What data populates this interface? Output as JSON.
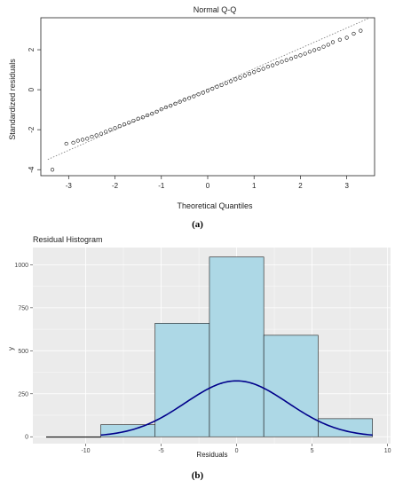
{
  "captions": {
    "a": "(a)",
    "b": "(b)"
  },
  "chart_data": [
    {
      "type": "scatter",
      "title": "Normal Q-Q",
      "xlabel": "Theoretical Quantiles",
      "ylabel": "Standardized residuals",
      "xlim": [
        -3.6,
        3.6
      ],
      "ylim": [
        -4.3,
        3.6
      ],
      "xticks": [
        -3,
        -2,
        -1,
        0,
        1,
        2,
        3
      ],
      "yticks": [
        -4,
        -2,
        0,
        2
      ],
      "xtick_labels": [
        "-3",
        "-2",
        "-1",
        "0",
        "1",
        "2",
        "3"
      ],
      "ytick_labels": [
        "-4",
        "-2",
        "0",
        "2"
      ],
      "reference_line": {
        "slope": 1.02,
        "intercept": 0.03,
        "style": "dotted"
      },
      "points": {
        "x": [
          -3.35,
          -3.05,
          -2.9,
          -2.8,
          -2.7,
          -2.6,
          -2.5,
          -2.4,
          -2.3,
          -2.2,
          -2.1,
          -2.0,
          -1.9,
          -1.8,
          -1.7,
          -1.6,
          -1.5,
          -1.4,
          -1.3,
          -1.2,
          -1.1,
          -1.0,
          -0.9,
          -0.8,
          -0.7,
          -0.6,
          -0.5,
          -0.4,
          -0.3,
          -0.2,
          -0.1,
          0.0,
          0.1,
          0.2,
          0.3,
          0.4,
          0.5,
          0.6,
          0.7,
          0.8,
          0.9,
          1.0,
          1.1,
          1.2,
          1.3,
          1.4,
          1.5,
          1.6,
          1.7,
          1.8,
          1.9,
          2.0,
          2.1,
          2.2,
          2.3,
          2.4,
          2.5,
          2.6,
          2.7,
          2.85,
          3.0,
          3.15,
          3.3
        ],
        "y": [
          -4.0,
          -2.7,
          -2.65,
          -2.55,
          -2.5,
          -2.45,
          -2.35,
          -2.28,
          -2.2,
          -2.1,
          -2.0,
          -1.92,
          -1.82,
          -1.73,
          -1.65,
          -1.55,
          -1.45,
          -1.38,
          -1.28,
          -1.2,
          -1.1,
          -0.98,
          -0.88,
          -0.8,
          -0.7,
          -0.6,
          -0.5,
          -0.42,
          -0.33,
          -0.23,
          -0.15,
          -0.05,
          0.05,
          0.15,
          0.23,
          0.33,
          0.42,
          0.52,
          0.6,
          0.7,
          0.8,
          0.88,
          0.98,
          1.05,
          1.15,
          1.22,
          1.32,
          1.4,
          1.48,
          1.55,
          1.65,
          1.72,
          1.8,
          1.9,
          1.98,
          2.05,
          2.15,
          2.25,
          2.38,
          2.5,
          2.6,
          2.8,
          2.95
        ]
      }
    },
    {
      "type": "bar",
      "title": "Residual Histogram",
      "xlabel": "Residuals",
      "ylabel": "y",
      "xlim": [
        -13.5,
        10.2
      ],
      "ylim": [
        -40,
        1100
      ],
      "xticks": [
        -10,
        -5,
        0,
        5,
        10
      ],
      "yticks": [
        0,
        250,
        500,
        750,
        1000
      ],
      "xtick_labels": [
        "-10",
        "-5",
        "0",
        "5",
        "10"
      ],
      "ytick_labels": [
        "0",
        "250",
        "500",
        "750",
        "1000"
      ],
      "bins": [
        {
          "x0": -12.6,
          "x1": -9.0,
          "count": 0
        },
        {
          "x0": -9.0,
          "x1": -5.4,
          "count": 70
        },
        {
          "x0": -5.4,
          "x1": -1.8,
          "count": 660
        },
        {
          "x0": -1.8,
          "x1": 1.8,
          "count": 1045
        },
        {
          "x0": 1.8,
          "x1": 5.4,
          "count": 590
        },
        {
          "x0": 5.4,
          "x1": 9.0,
          "count": 105
        }
      ],
      "density_curve": {
        "mean": 0.0,
        "sd": 3.4,
        "peak": 325,
        "range": [
          -9.0,
          9.0
        ]
      },
      "colors": {
        "bar_fill": "#add8e6",
        "bar_stroke": "#1a1a1a",
        "curve": "#00008b",
        "panel": "#ebebeb",
        "grid": "#ffffff"
      }
    }
  ]
}
